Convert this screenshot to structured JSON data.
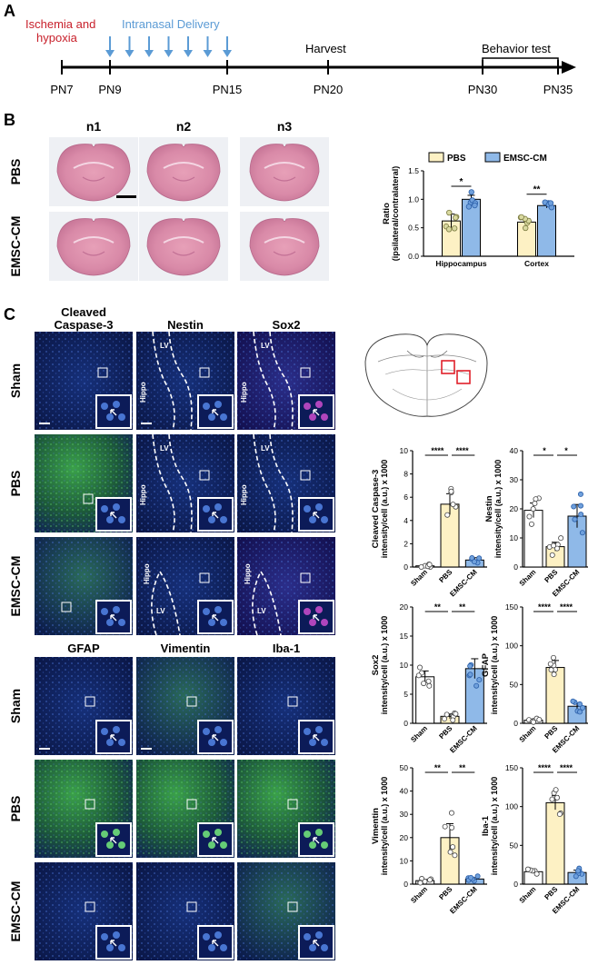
{
  "panels": {
    "a": "A",
    "b": "B",
    "c": "C"
  },
  "timeline": {
    "ischemia_line1": "Ischemia and",
    "ischemia_line2": "hypoxia",
    "intranasal": "Intranasal Delivery",
    "harvest": "Harvest",
    "behavior": "Behavior test",
    "ticks": [
      "PN7",
      "PN9",
      "PN15",
      "PN20",
      "PN30",
      "PN35"
    ],
    "colors": {
      "ischemia": "#c8202b",
      "intranasal": "#5b9bd5",
      "arrow": "#5b9bd5"
    }
  },
  "he": {
    "cols": [
      "n1",
      "n2",
      "n3"
    ],
    "rows": [
      "PBS",
      "EMSC-CM"
    ]
  },
  "if_top": {
    "cols": [
      "Cleaved",
      "Caspase-3",
      "Nestin",
      "Sox2"
    ],
    "rows": [
      "Sham",
      "PBS",
      "EMSC-CM"
    ],
    "lv": "LV",
    "hippo": "Hippo"
  },
  "if_bottom": {
    "cols": [
      "GFAP",
      "Vimentin",
      "Iba-1"
    ],
    "rows": [
      "Sham",
      "PBS",
      "EMSC-CM"
    ]
  },
  "colors": {
    "pbs": "#fdf1c4",
    "emsc": "#8fb9e8",
    "sham": "#ffffff",
    "sig": "#000000"
  },
  "chart_data": [
    {
      "type": "bar",
      "id": "ratio",
      "ylabel": "Ratio",
      "ylabel2": "(ipsilateral/contralateral)",
      "categories": [
        "Hippocampus",
        "Cortex"
      ],
      "legend": [
        "PBS",
        "EMSC-CM"
      ],
      "series": [
        {
          "name": "PBS",
          "values": [
            0.62,
            0.6
          ],
          "sem": [
            0.12,
            0.06
          ]
        },
        {
          "name": "EMSC-CM",
          "values": [
            1.0,
            0.89
          ],
          "sem": [
            0.07,
            0.04
          ]
        }
      ],
      "sig": [
        "*",
        "**"
      ],
      "ylim": [
        0,
        1.5
      ],
      "yticks": [
        "0.0",
        "0.5",
        "1.0",
        "1.5"
      ]
    },
    {
      "type": "bar",
      "id": "casp",
      "ylabel": "Cleaved Caspase-3",
      "ylabel2": "intensity/cell (a.u.) x 1000",
      "categories": [
        "Sham",
        "PBS",
        "EMSC-CM"
      ],
      "values": [
        0.1,
        5.4,
        0.6
      ],
      "sem": [
        0.05,
        0.9,
        0.2
      ],
      "ylim": [
        0,
        10
      ],
      "yticks": [
        "0",
        "2",
        "4",
        "6",
        "8",
        "10"
      ],
      "sig": [
        "****",
        "****"
      ]
    },
    {
      "type": "bar",
      "id": "nestin",
      "ylabel": "Nestin",
      "ylabel2": "intensity/cell (a.u.) x 1000",
      "categories": [
        "Sham",
        "PBS",
        "EMSC-CM"
      ],
      "values": [
        19.5,
        7.0,
        17.5
      ],
      "sem": [
        2.5,
        1.5,
        4.0
      ],
      "ylim": [
        0,
        40
      ],
      "yticks": [
        "0",
        "10",
        "20",
        "30",
        "40"
      ],
      "sig": [
        "*",
        "*"
      ]
    },
    {
      "type": "bar",
      "id": "sox2",
      "ylabel": "Sox2",
      "ylabel2": "intensity/cell (a.u.) x 1000",
      "categories": [
        "Sham",
        "PBS",
        "EMSC-CM"
      ],
      "values": [
        8.0,
        1.2,
        9.4
      ],
      "sem": [
        1.0,
        0.4,
        1.7
      ],
      "ylim": [
        0,
        20
      ],
      "yticks": [
        "0",
        "5",
        "10",
        "15",
        "20"
      ],
      "sig": [
        "**",
        "**"
      ]
    },
    {
      "type": "bar",
      "id": "gfap",
      "ylabel": "GFAP",
      "ylabel2": "intensity/cell (a.u.) x 1000",
      "categories": [
        "Sham",
        "PBS",
        "EMSC-CM"
      ],
      "values": [
        4,
        72,
        22
      ],
      "sem": [
        1,
        9,
        4
      ],
      "ylim": [
        0,
        150
      ],
      "yticks": [
        "0",
        "50",
        "100",
        "150"
      ],
      "sig": [
        "****",
        "****"
      ]
    },
    {
      "type": "bar",
      "id": "vim",
      "ylabel": "Vimentin",
      "ylabel2": "intensity/cell (a.u.) x 1000",
      "categories": [
        "Sham",
        "PBS",
        "EMSC-CM"
      ],
      "values": [
        1.5,
        20,
        2.2
      ],
      "sem": [
        0.5,
        6,
        0.6
      ],
      "ylim": [
        0,
        50
      ],
      "yticks": [
        "0",
        "10",
        "20",
        "30",
        "40",
        "50"
      ],
      "sig": [
        "**",
        "**"
      ]
    },
    {
      "type": "bar",
      "id": "iba",
      "ylabel": "Iba-1",
      "ylabel2": "intensity/cell (a.u.) x 1000",
      "categories": [
        "Sham",
        "PBS",
        "EMSC-CM"
      ],
      "values": [
        16,
        105,
        15
      ],
      "sem": [
        2,
        9,
        3
      ],
      "ylim": [
        0,
        150
      ],
      "yticks": [
        "0",
        "50",
        "100",
        "150"
      ],
      "sig": [
        "****",
        "****"
      ]
    }
  ]
}
